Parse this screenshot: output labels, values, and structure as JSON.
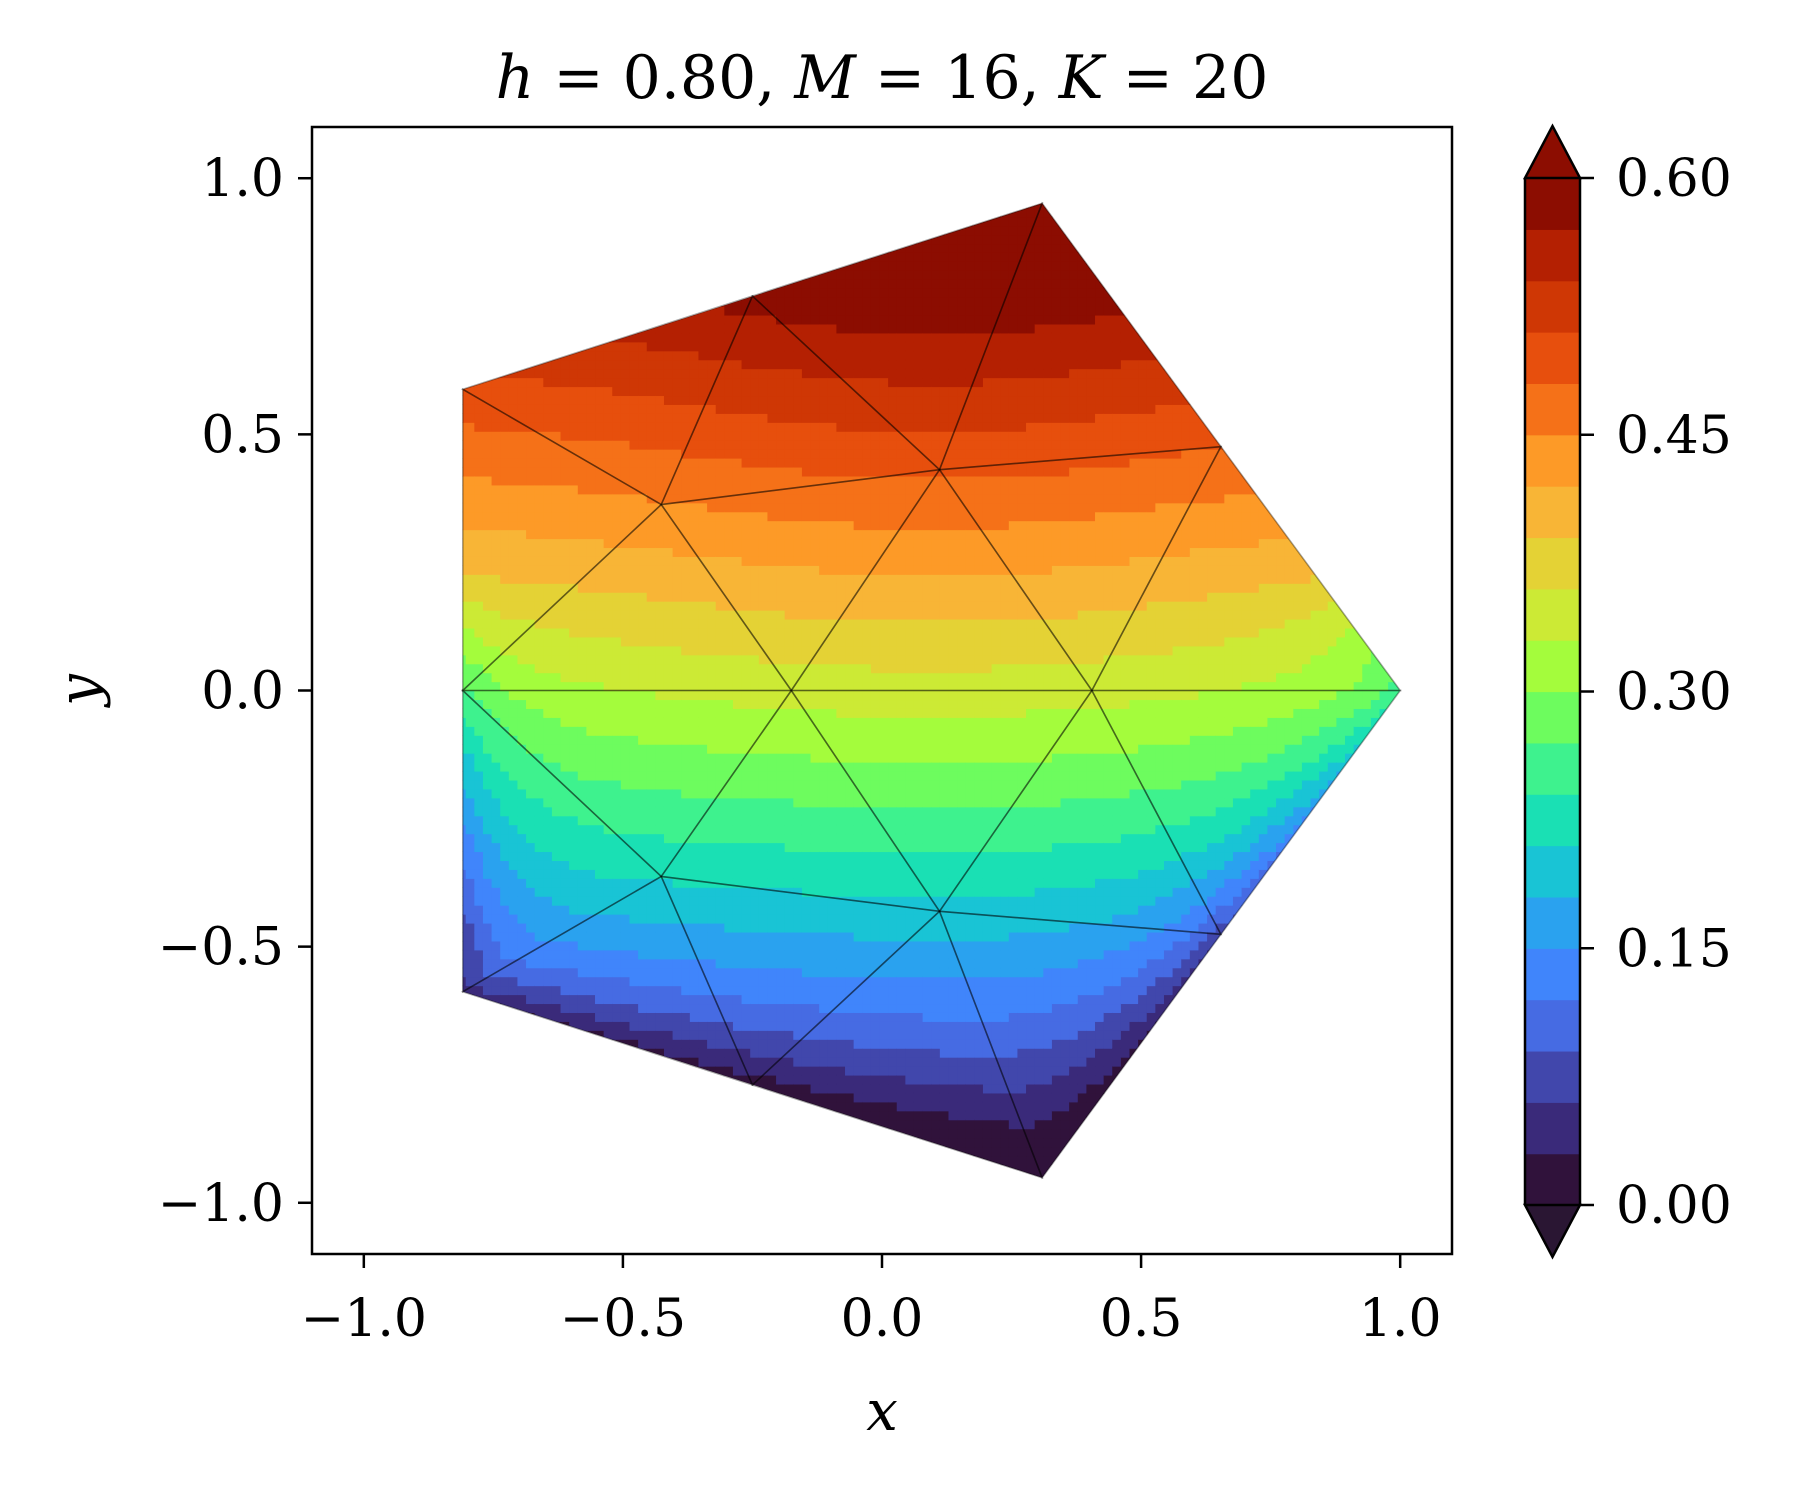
{
  "chart_data": {
    "type": "heatmap",
    "title": {
      "parts": [
        {
          "t": "h",
          "italic": true
        },
        {
          "t": " = 0.80, ",
          "italic": false
        },
        {
          "t": "M",
          "italic": true
        },
        {
          "t": " = 16, ",
          "italic": false
        },
        {
          "t": "K",
          "italic": true
        },
        {
          "t": " = 20",
          "italic": false
        }
      ]
    },
    "xlabel": "x",
    "ylabel": "y",
    "xlim": [
      -1.1,
      1.1
    ],
    "ylim": [
      -1.1,
      1.1
    ],
    "x_ticks": [
      -1.0,
      -0.5,
      0.0,
      0.5,
      1.0
    ],
    "x_tick_labels": [
      "−1.0",
      "−0.5",
      "0.0",
      "0.5",
      "1.0"
    ],
    "y_ticks": [
      1.0,
      0.5,
      0.0,
      -0.5,
      -1.0
    ],
    "y_tick_labels": [
      "1.0",
      "0.5",
      "0.0",
      "−0.5",
      "−1.0"
    ],
    "colorbar": {
      "min": 0.0,
      "max": 0.6,
      "levels": 19,
      "extend": "both",
      "colors": [
        "#30123b",
        "#3a2a7a",
        "#4147ac",
        "#466be3",
        "#4085fb",
        "#2aa2ef",
        "#19c4d5",
        "#1ae0b4",
        "#3ef28e",
        "#6dfc5e",
        "#a4fc3c",
        "#ccea35",
        "#e4d235",
        "#f8b536",
        "#fd9a27",
        "#f57118",
        "#e74f0d",
        "#cf3705",
        "#b42002",
        "#8c0d01"
      ],
      "ticks": [
        0.0,
        0.15,
        0.3,
        0.45,
        0.6
      ],
      "tick_labels": [
        "0.00",
        "0.15",
        "0.30",
        "0.45",
        "0.60"
      ]
    },
    "domain_shape": "regular pentagon",
    "mesh_nodes": [
      [
        1.0,
        0.0
      ],
      [
        0.309,
        0.951
      ],
      [
        -0.809,
        0.588
      ],
      [
        -0.809,
        -0.588
      ],
      [
        0.309,
        -0.951
      ],
      [
        0.654,
        0.476
      ],
      [
        -0.25,
        0.77
      ],
      [
        -0.809,
        0.0
      ],
      [
        -0.25,
        -0.77
      ],
      [
        0.654,
        -0.476
      ],
      [
        0.111,
        0.431
      ],
      [
        -0.426,
        0.363
      ],
      [
        -0.426,
        -0.363
      ],
      [
        0.111,
        -0.431
      ],
      [
        0.405,
        0.0
      ],
      [
        -0.175,
        0.0
      ]
    ],
    "mesh_triangles": [
      [
        0,
        5,
        14
      ],
      [
        5,
        1,
        10
      ],
      [
        5,
        10,
        14
      ],
      [
        0,
        14,
        9
      ],
      [
        9,
        14,
        13
      ],
      [
        9,
        13,
        4
      ],
      [
        1,
        6,
        10
      ],
      [
        6,
        11,
        10
      ],
      [
        6,
        2,
        11
      ],
      [
        2,
        7,
        11
      ],
      [
        7,
        15,
        11
      ],
      [
        7,
        3,
        12
      ],
      [
        7,
        12,
        15
      ],
      [
        3,
        8,
        12
      ],
      [
        8,
        13,
        12
      ],
      [
        8,
        4,
        13
      ],
      [
        10,
        11,
        15
      ],
      [
        10,
        15,
        14
      ],
      [
        14,
        15,
        13
      ],
      [
        15,
        12,
        13
      ]
    ],
    "field_description": "u(x,y) = 0.6 * (y - y_bottom) / (y_top - y_bottom) * boundary damping",
    "plot_background": "#ffffff",
    "mesh_line_color": "#000000"
  }
}
